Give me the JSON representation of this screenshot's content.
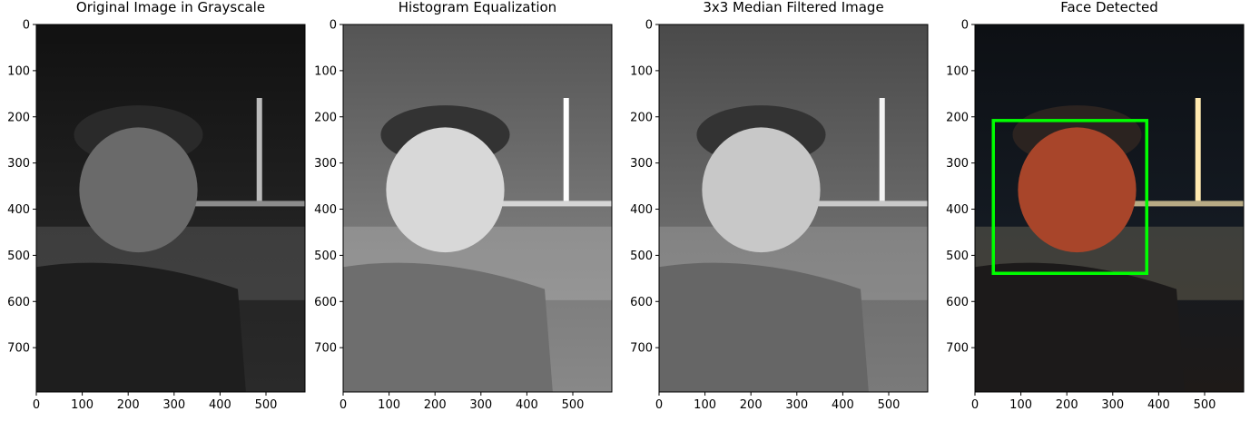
{
  "chart_data": [
    {
      "type": "image",
      "title": "Original Image in Grayscale",
      "xlim": [
        0,
        585
      ],
      "ylim": [
        796,
        0
      ],
      "xticks": [
        0,
        100,
        200,
        300,
        400,
        500
      ],
      "yticks": [
        0,
        100,
        200,
        300,
        400,
        500,
        600,
        700
      ]
    },
    {
      "type": "image",
      "title": "Histogram Equalization",
      "xlim": [
        0,
        585
      ],
      "ylim": [
        796,
        0
      ],
      "xticks": [
        0,
        100,
        200,
        300,
        400,
        500
      ],
      "yticks": [
        0,
        100,
        200,
        300,
        400,
        500,
        600,
        700
      ]
    },
    {
      "type": "image",
      "title": "3x3 Median Filtered Image",
      "xlim": [
        0,
        585
      ],
      "ylim": [
        796,
        0
      ],
      "xticks": [
        0,
        100,
        200,
        300,
        400,
        500
      ],
      "yticks": [
        0,
        100,
        200,
        300,
        400,
        500,
        600,
        700
      ]
    },
    {
      "type": "image",
      "title": "Face Detected",
      "xlim": [
        0,
        585
      ],
      "ylim": [
        796,
        0
      ],
      "xticks": [
        0,
        100,
        200,
        300,
        400,
        500
      ],
      "yticks": [
        0,
        100,
        200,
        300,
        400,
        500,
        600,
        700
      ],
      "face_box": {
        "x": 40,
        "y": 208,
        "width": 334,
        "height": 331,
        "color": "#00ff00"
      }
    }
  ]
}
